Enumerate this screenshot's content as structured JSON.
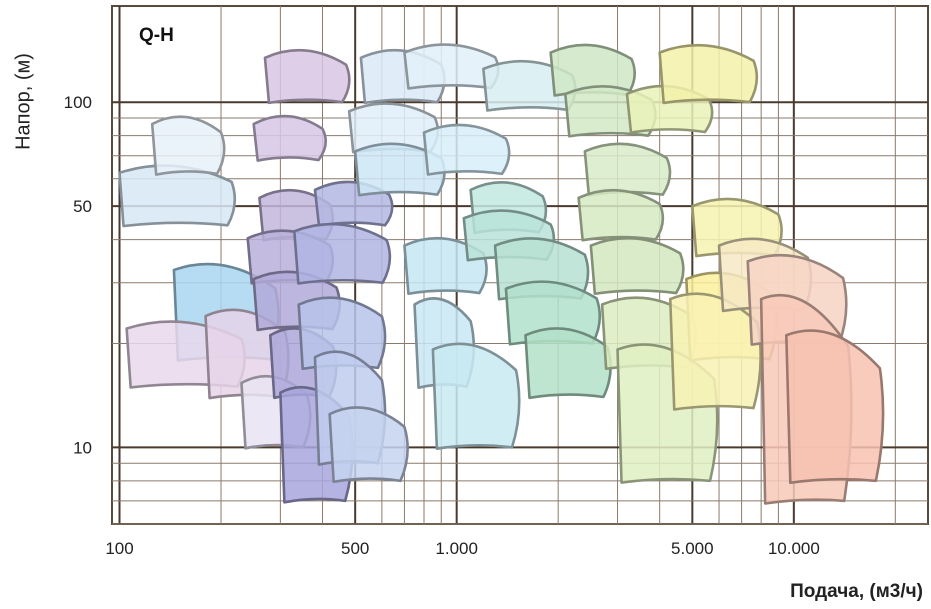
{
  "chart_data": {
    "type": "area",
    "title": "Q-H",
    "xlabel": "Подача, (м3/ч)",
    "ylabel": "Напор, (м)",
    "x_scale": "log",
    "y_scale": "log",
    "xlim": [
      95,
      25000
    ],
    "ylim": [
      6,
      190
    ],
    "x_ticks": [
      {
        "value": 100,
        "label": "100"
      },
      {
        "value": 500,
        "label": "500"
      },
      {
        "value": 1000,
        "label": "1.000"
      },
      {
        "value": 5000,
        "label": "5.000"
      },
      {
        "value": 10000,
        "label": "10.000"
      }
    ],
    "y_ticks": [
      {
        "value": 100,
        "label": "100"
      },
      {
        "value": 50,
        "label": "50"
      },
      {
        "value": 10,
        "label": "10"
      }
    ],
    "grid": true,
    "series": [
      {
        "color": "#d7e8f5",
        "q1": 100,
        "q2": 215,
        "h1": 65,
        "h2": 44
      },
      {
        "color": "#e7f1f9",
        "q1": 125,
        "q2": 200,
        "h1": 90,
        "h2": 62
      },
      {
        "color": "#a9d6f2",
        "q1": 145,
        "q2": 290,
        "h1": 34,
        "h2": 18
      },
      {
        "color": "#e9d8ec",
        "q1": 105,
        "q2": 230,
        "h1": 23,
        "h2": 15
      },
      {
        "color": "#e6d3e9",
        "q1": 180,
        "q2": 310,
        "h1": 25,
        "h2": 14
      },
      {
        "color": "#e9e3f2",
        "q1": 230,
        "q2": 360,
        "h1": 16,
        "h2": 10
      },
      {
        "color": "#d8c6e3",
        "q1": 270,
        "q2": 470,
        "h1": 140,
        "h2": 100
      },
      {
        "color": "#d7c7e6",
        "q1": 250,
        "q2": 400,
        "h1": 90,
        "h2": 68
      },
      {
        "color": "#c2b6dc",
        "q1": 260,
        "q2": 420,
        "h1": 55,
        "h2": 40
      },
      {
        "color": "#b8b0db",
        "q1": 240,
        "q2": 420,
        "h1": 42,
        "h2": 30
      },
      {
        "color": "#b1a9d8",
        "q1": 250,
        "q2": 440,
        "h1": 32,
        "h2": 22
      },
      {
        "color": "#aca7d9",
        "q1": 280,
        "q2": 430,
        "h1": 22,
        "h2": 14
      },
      {
        "color": "#a8a6dc",
        "q1": 300,
        "q2": 480,
        "h1": 15,
        "h2": 7
      },
      {
        "color": "#b4b7e3",
        "q1": 380,
        "q2": 630,
        "h1": 58,
        "h2": 44
      },
      {
        "color": "#b0b5e3",
        "q1": 330,
        "q2": 620,
        "h1": 44,
        "h2": 30
      },
      {
        "color": "#b7c3ea",
        "q1": 340,
        "q2": 600,
        "h1": 27,
        "h2": 17
      },
      {
        "color": "#c0ccee",
        "q1": 380,
        "q2": 600,
        "h1": 19,
        "h2": 9
      },
      {
        "color": "#c6d3f0",
        "q1": 420,
        "q2": 700,
        "h1": 13,
        "h2": 8
      },
      {
        "color": "#dbeaf8",
        "q1": 520,
        "q2": 900,
        "h1": 140,
        "h2": 100
      },
      {
        "color": "#e0eef9",
        "q1": 480,
        "q2": 860,
        "h1": 98,
        "h2": 72
      },
      {
        "color": "#cde6f6",
        "q1": 500,
        "q2": 900,
        "h1": 75,
        "h2": 54
      },
      {
        "color": "#e2f0f9",
        "q1": 700,
        "q2": 1300,
        "h1": 145,
        "h2": 110
      },
      {
        "color": "#d7eef9",
        "q1": 800,
        "q2": 1400,
        "h1": 85,
        "h2": 62
      },
      {
        "color": "#c5e6f3",
        "q1": 700,
        "q2": 1200,
        "h1": 40,
        "h2": 28
      },
      {
        "color": "#c8e7f4",
        "q1": 750,
        "q2": 1100,
        "h1": 27,
        "h2": 15
      },
      {
        "color": "#c9eaf2",
        "q1": 850,
        "q2": 1500,
        "h1": 20,
        "h2": 10
      },
      {
        "color": "#d7edf1",
        "q1": 1200,
        "q2": 2200,
        "h1": 130,
        "h2": 95
      },
      {
        "color": "#c2e7e1",
        "q1": 1100,
        "q2": 1800,
        "h1": 58,
        "h2": 42
      },
      {
        "color": "#b9e3d8",
        "q1": 1050,
        "q2": 1900,
        "h1": 48,
        "h2": 35
      },
      {
        "color": "#b7e1d3",
        "q1": 1300,
        "q2": 2400,
        "h1": 40,
        "h2": 27
      },
      {
        "color": "#b2e0cd",
        "q1": 1400,
        "q2": 2600,
        "h1": 30,
        "h2": 20
      },
      {
        "color": "#b3e0c7",
        "q1": 1600,
        "q2": 2800,
        "h1": 22,
        "h2": 14
      },
      {
        "color": "#cfe7c4",
        "q1": 1900,
        "q2": 3300,
        "h1": 145,
        "h2": 105
      },
      {
        "color": "#d2e9c6",
        "q1": 2100,
        "q2": 3800,
        "h1": 110,
        "h2": 80
      },
      {
        "color": "#d8ebc8",
        "q1": 2400,
        "q2": 4200,
        "h1": 75,
        "h2": 54
      },
      {
        "color": "#d6eac3",
        "q1": 2300,
        "q2": 4000,
        "h1": 55,
        "h2": 40
      },
      {
        "color": "#d3e8bf",
        "q1": 2500,
        "q2": 4600,
        "h1": 40,
        "h2": 28
      },
      {
        "color": "#dcedc1",
        "q1": 2700,
        "q2": 5000,
        "h1": 27,
        "h2": 17
      },
      {
        "color": "#dff0c2",
        "q1": 3000,
        "q2": 5800,
        "h1": 20,
        "h2": 8
      },
      {
        "color": "#e9f2b9",
        "q1": 3200,
        "q2": 5600,
        "h1": 110,
        "h2": 82
      },
      {
        "color": "#f3f1a9",
        "q1": 4000,
        "q2": 7600,
        "h1": 145,
        "h2": 100
      },
      {
        "color": "#f7f3b0",
        "q1": 5000,
        "q2": 9000,
        "h1": 52,
        "h2": 36
      },
      {
        "color": "#fbf09d",
        "q1": 4800,
        "q2": 8700,
        "h1": 32,
        "h2": 18
      },
      {
        "color": "#f8f2b4",
        "q1": 4300,
        "q2": 7800,
        "h1": 28,
        "h2": 13
      },
      {
        "color": "#f6e9c4",
        "q1": 6000,
        "q2": 11000,
        "h1": 40,
        "h2": 25
      },
      {
        "color": "#f7d4c4",
        "q1": 7300,
        "q2": 14000,
        "h1": 36,
        "h2": 20
      },
      {
        "color": "#f8c9b8",
        "q1": 8000,
        "q2": 14500,
        "h1": 28,
        "h2": 7
      },
      {
        "color": "#f7c2b2",
        "q1": 9500,
        "q2": 18000,
        "h1": 22,
        "h2": 8
      }
    ]
  }
}
